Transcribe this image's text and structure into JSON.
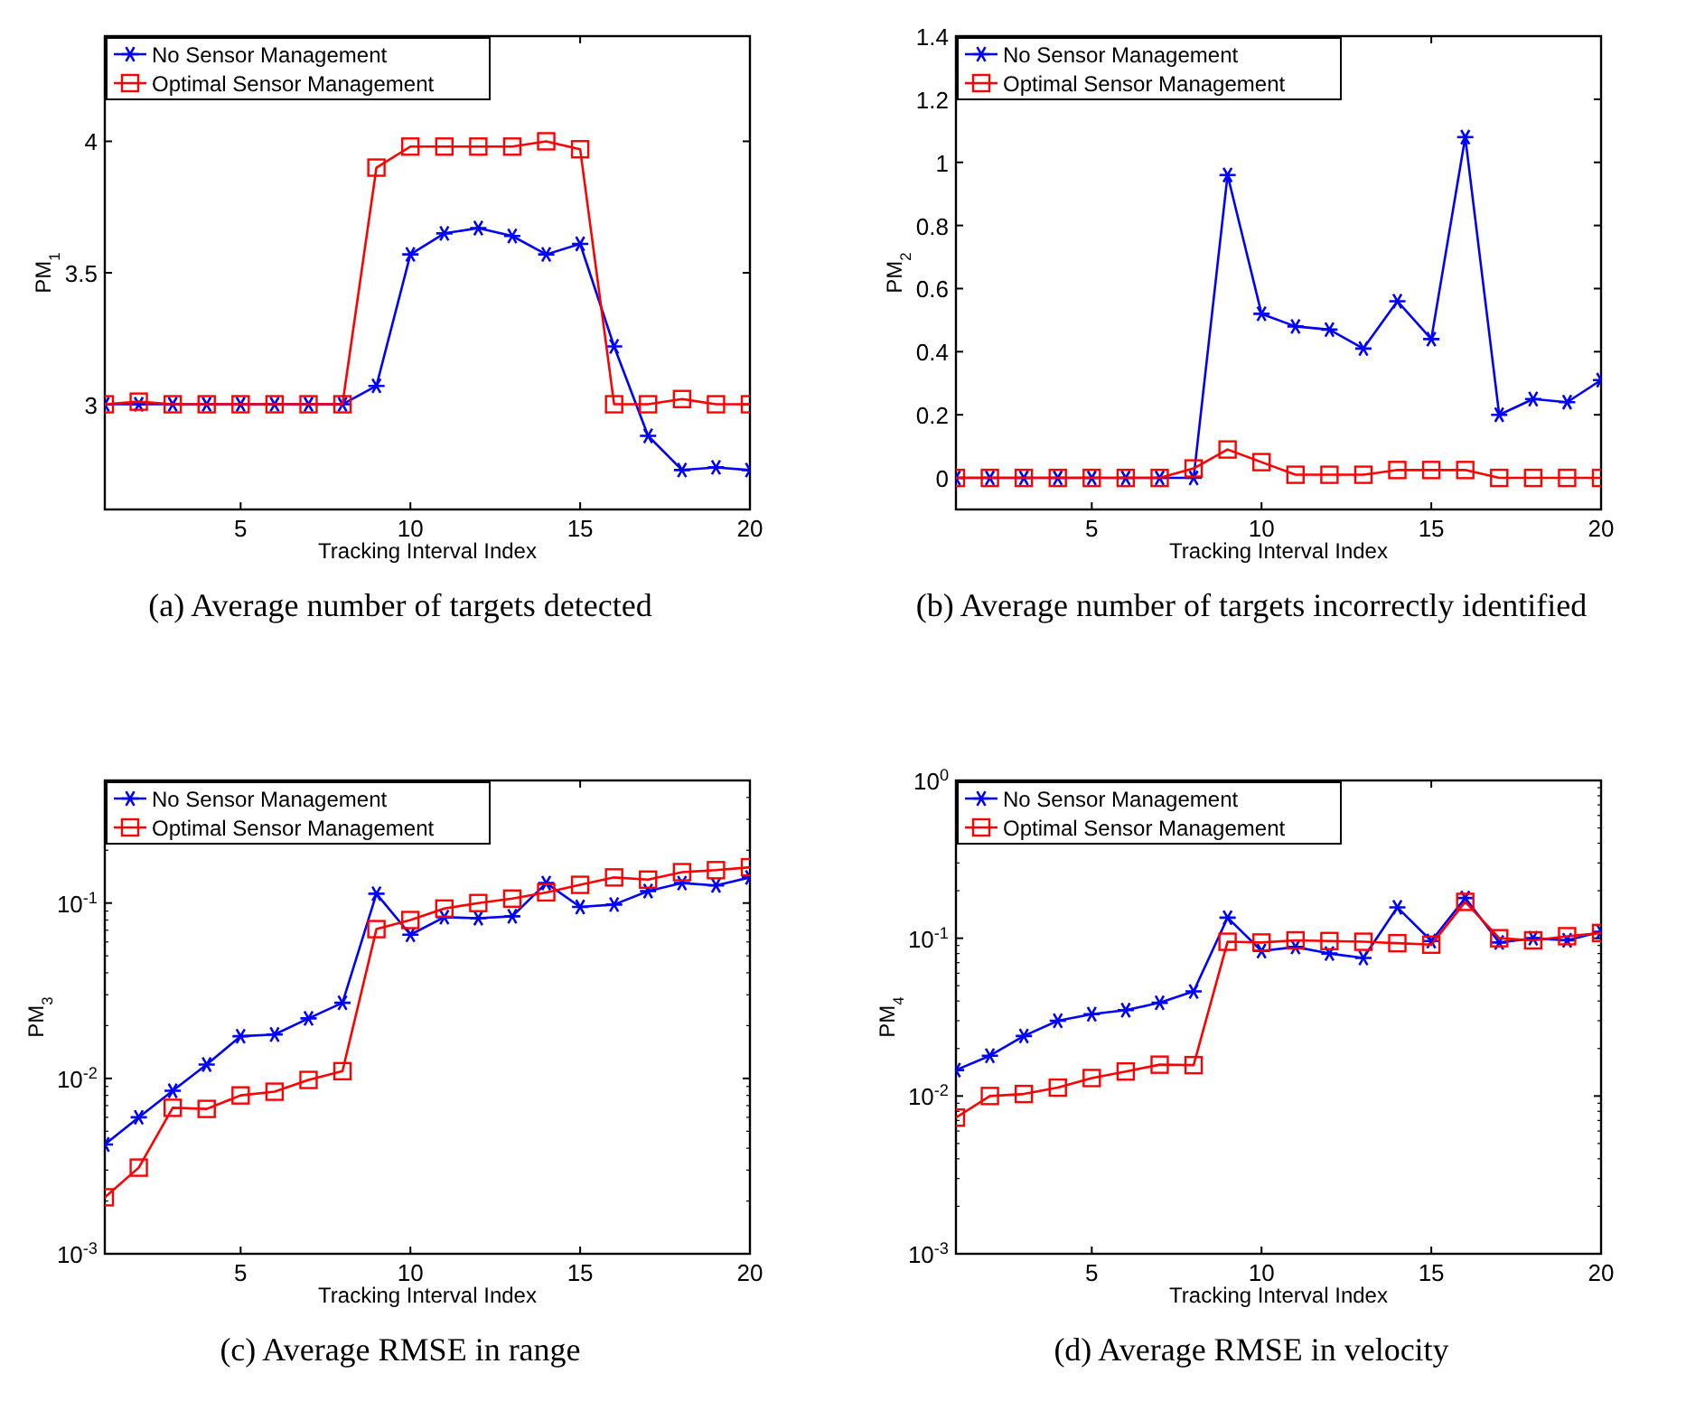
{
  "chart_data": [
    {
      "type": "line",
      "title": "(a) Average number of targets detected",
      "xlabel": "Tracking Interval Index",
      "ylabel": "PM$_{1}$",
      "x": [
        1,
        2,
        3,
        4,
        5,
        6,
        7,
        8,
        9,
        10,
        11,
        12,
        13,
        14,
        15,
        16,
        17,
        18,
        19,
        20
      ],
      "xlim": [
        1,
        20
      ],
      "xticks": [
        5,
        10,
        15,
        20
      ],
      "ylim": [
        2.6,
        4.4
      ],
      "yticks": [
        3,
        3.5,
        4
      ],
      "grid": false,
      "legend": "top left",
      "series": [
        {
          "name": "No Sensor Management",
          "color": "#0000ff",
          "marker": "cross",
          "values": [
            3,
            3,
            3,
            3,
            3,
            3,
            3,
            3,
            3.07,
            3.57,
            3.65,
            3.67,
            3.64,
            3.57,
            3.61,
            3.22,
            2.88,
            2.75,
            2.76,
            2.75
          ]
        },
        {
          "name": "Optimal Sensor Management",
          "color": "#ff0000",
          "marker": "square",
          "values": [
            3,
            3.01,
            3,
            3,
            3,
            3,
            3,
            3,
            3.9,
            3.98,
            3.98,
            3.98,
            3.98,
            4.0,
            3.97,
            3.0,
            3.0,
            3.02,
            3.0,
            3.0
          ]
        }
      ]
    },
    {
      "type": "line",
      "title": "(b) Average number of targets incorrectly identified",
      "xlabel": "Tracking Interval Index",
      "ylabel": "PM$_{2}$",
      "x": [
        1,
        2,
        3,
        4,
        5,
        6,
        7,
        8,
        9,
        10,
        11,
        12,
        13,
        14,
        15,
        16,
        17,
        18,
        19,
        20
      ],
      "xlim": [
        1,
        20
      ],
      "xticks": [
        5,
        10,
        15,
        20
      ],
      "ylim": [
        -0.1,
        1.4
      ],
      "yticks": [
        0,
        0.2,
        0.4,
        0.6,
        0.8,
        1,
        1.2,
        1.4
      ],
      "grid": false,
      "legend": "top left",
      "series": [
        {
          "name": "No Sensor Management",
          "color": "#0000ff",
          "marker": "cross",
          "values": [
            0,
            0,
            0,
            0,
            0,
            0,
            0,
            0,
            0.96,
            0.52,
            0.48,
            0.47,
            0.41,
            0.56,
            0.44,
            1.08,
            0.2,
            0.25,
            0.24,
            0.31
          ]
        },
        {
          "name": "Optimal Sensor Management",
          "color": "#ff0000",
          "marker": "square",
          "values": [
            0,
            0,
            0,
            0,
            0,
            0,
            0,
            0.03,
            0.09,
            0.05,
            0.01,
            0.01,
            0.01,
            0.025,
            0.025,
            0.025,
            0,
            0,
            0,
            0
          ]
        }
      ]
    },
    {
      "type": "line",
      "title": "(c) Average RMSE in range",
      "xlabel": "Tracking Interval Index",
      "ylabel": "PM$_{3}$",
      "log": "y",
      "x": [
        1,
        2,
        3,
        4,
        5,
        6,
        7,
        8,
        9,
        10,
        11,
        12,
        13,
        14,
        15,
        16,
        17,
        18,
        19,
        20
      ],
      "xlim": [
        1,
        20
      ],
      "xticks": [
        5,
        10,
        15,
        20
      ],
      "ylim": [
        0.001,
        0.5
      ],
      "yticks": [
        {
          "value": 0.001,
          "label": "10$^{-3}$"
        },
        {
          "value": 0.01,
          "label": "10$^{-2}$"
        },
        {
          "value": 0.1,
          "label": "10$^{-1}$"
        }
      ],
      "grid": false,
      "legend": "top left",
      "series": [
        {
          "name": "No Sensor Management",
          "color": "#0000ff",
          "marker": "cross",
          "values": [
            0.0042,
            0.006,
            0.0085,
            0.012,
            0.0174,
            0.0178,
            0.022,
            0.027,
            0.113,
            0.066,
            0.083,
            0.082,
            0.084,
            0.13,
            0.095,
            0.098,
            0.117,
            0.13,
            0.126,
            0.14
          ]
        },
        {
          "name": "Optimal Sensor Management",
          "color": "#ff0000",
          "marker": "square",
          "values": [
            0.0021,
            0.0031,
            0.0068,
            0.0067,
            0.008,
            0.0084,
            0.0098,
            0.011,
            0.071,
            0.08,
            0.093,
            0.1,
            0.106,
            0.115,
            0.127,
            0.14,
            0.136,
            0.15,
            0.154,
            0.16
          ]
        }
      ]
    },
    {
      "type": "line",
      "title": "(d) Average RMSE in velocity",
      "xlabel": "Tracking Interval Index",
      "ylabel": "PM$_{4}$",
      "log": "y",
      "x": [
        1,
        2,
        3,
        4,
        5,
        6,
        7,
        8,
        9,
        10,
        11,
        12,
        13,
        14,
        15,
        16,
        17,
        18,
        19,
        20
      ],
      "xlim": [
        1,
        20
      ],
      "xticks": [
        5,
        10,
        15,
        20
      ],
      "ylim": [
        0.001,
        1
      ],
      "yticks": [
        {
          "value": 0.001,
          "label": "10$^{-3}$"
        },
        {
          "value": 0.01,
          "label": "10$^{-2}$"
        },
        {
          "value": 0.1,
          "label": "10$^{-1}$"
        },
        {
          "value": 1,
          "label": "10$^{0}$"
        }
      ],
      "grid": false,
      "legend": "top left",
      "series": [
        {
          "name": "No Sensor Management",
          "color": "#0000ff",
          "marker": "cross",
          "values": [
            0.0146,
            0.018,
            0.024,
            0.03,
            0.033,
            0.035,
            0.039,
            0.046,
            0.135,
            0.083,
            0.088,
            0.08,
            0.075,
            0.157,
            0.096,
            0.18,
            0.094,
            0.1,
            0.097,
            0.11
          ]
        },
        {
          "name": "Optimal Sensor Management",
          "color": "#ff0000",
          "marker": "square",
          "values": [
            0.0073,
            0.01,
            0.0103,
            0.0113,
            0.013,
            0.0143,
            0.0158,
            0.0157,
            0.095,
            0.094,
            0.097,
            0.096,
            0.095,
            0.093,
            0.091,
            0.17,
            0.1,
            0.097,
            0.103,
            0.108
          ]
        }
      ]
    }
  ]
}
